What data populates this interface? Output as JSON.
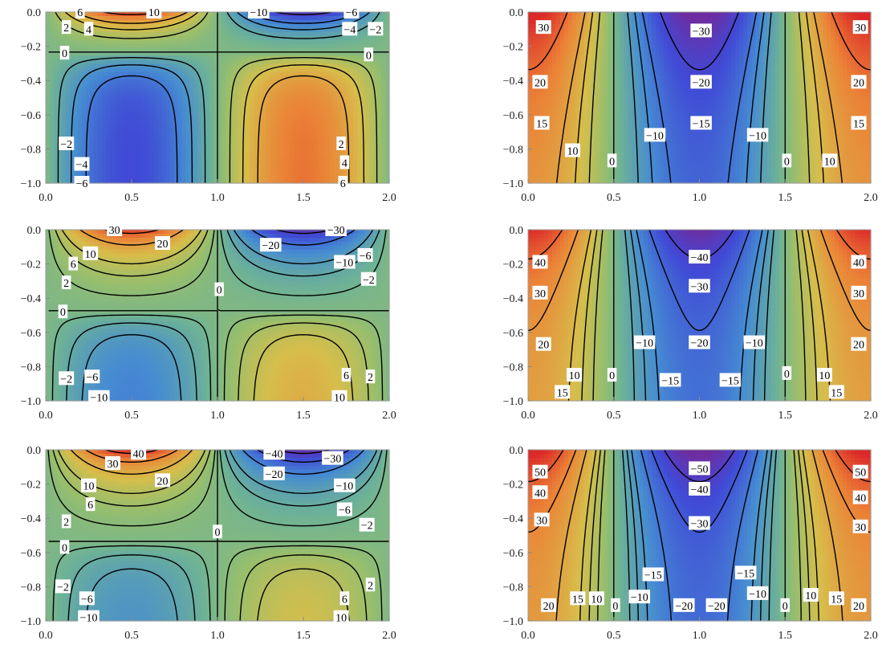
{
  "chart_data": [
    {
      "type": "heatmap",
      "panel": "row1-left",
      "x_range": [
        0,
        2
      ],
      "y_range": [
        -1,
        0
      ],
      "x_ticks": [
        "0.0",
        "0.5",
        "1.0",
        "1.5",
        "2.0"
      ],
      "y_ticks": [
        "0.0",
        "−0.2",
        "−0.4",
        "−0.6",
        "−0.8",
        "−1.0"
      ],
      "field": {
        "kind": "A",
        "s1": 11.5,
        "s2": -7.5,
        "y0": 0.235,
        "k1": 4.0,
        "k2": 3.6
      },
      "color_range": [
        -12,
        12
      ],
      "levels": [
        -10,
        -6,
        -4,
        -2,
        0,
        2,
        4,
        6,
        10
      ],
      "contour_labels": [
        {
          "x": 0.2,
          "y": 0.0,
          "text": "6"
        },
        {
          "x": 0.12,
          "y": -0.09,
          "text": "2"
        },
        {
          "x": 0.25,
          "y": -0.1,
          "text": "4"
        },
        {
          "x": 0.63,
          "y": 0.0,
          "text": "10"
        },
        {
          "x": 1.24,
          "y": 0.0,
          "text": "−10"
        },
        {
          "x": 1.78,
          "y": 0.0,
          "text": "−6"
        },
        {
          "x": 1.77,
          "y": -0.1,
          "text": "−4"
        },
        {
          "x": 1.92,
          "y": -0.1,
          "text": "−2"
        },
        {
          "x": 0.11,
          "y": -0.24,
          "text": "0"
        },
        {
          "x": 1.88,
          "y": -0.25,
          "text": "0"
        },
        {
          "x": 0.12,
          "y": -0.77,
          "text": "−2"
        },
        {
          "x": 0.21,
          "y": -0.89,
          "text": "−4"
        },
        {
          "x": 0.21,
          "y": -1.0,
          "text": "−6"
        },
        {
          "x": 1.72,
          "y": -0.77,
          "text": "2"
        },
        {
          "x": 1.74,
          "y": -0.88,
          "text": "4"
        },
        {
          "x": 1.73,
          "y": -1.0,
          "text": "6"
        }
      ]
    },
    {
      "type": "heatmap",
      "panel": "row1-right",
      "x_range": [
        0,
        2
      ],
      "y_range": [
        -1,
        0
      ],
      "x_ticks": [
        "0.0",
        "0.5",
        "1.0",
        "1.5",
        "2.0"
      ],
      "y_ticks": [
        "0.0",
        "−0.2",
        "−0.4",
        "−0.6",
        "−0.8",
        "−1.0"
      ],
      "field": {
        "kind": "B",
        "A": 21,
        "C": 13,
        "k": 2.2
      },
      "color_range": [
        -38,
        38
      ],
      "levels": [
        -30,
        -20,
        -15,
        -10,
        0,
        10,
        15,
        20,
        30
      ],
      "contour_labels": [
        {
          "x": 0.09,
          "y": -0.09,
          "text": "30"
        },
        {
          "x": 0.07,
          "y": -0.41,
          "text": "20"
        },
        {
          "x": 0.08,
          "y": -0.65,
          "text": "15"
        },
        {
          "x": 0.26,
          "y": -0.81,
          "text": "10"
        },
        {
          "x": 0.49,
          "y": -0.87,
          "text": "0"
        },
        {
          "x": 1.01,
          "y": -0.11,
          "text": "−30"
        },
        {
          "x": 1.01,
          "y": -0.41,
          "text": "−20"
        },
        {
          "x": 1.01,
          "y": -0.65,
          "text": "−15"
        },
        {
          "x": 0.74,
          "y": -0.72,
          "text": "−10"
        },
        {
          "x": 1.34,
          "y": -0.72,
          "text": "−10"
        },
        {
          "x": 1.51,
          "y": -0.87,
          "text": "0"
        },
        {
          "x": 1.76,
          "y": -0.87,
          "text": "10"
        },
        {
          "x": 1.93,
          "y": -0.65,
          "text": "15"
        },
        {
          "x": 1.93,
          "y": -0.41,
          "text": "20"
        },
        {
          "x": 1.94,
          "y": -0.09,
          "text": "30"
        }
      ]
    },
    {
      "type": "heatmap",
      "panel": "row2-left",
      "x_range": [
        0,
        2
      ],
      "y_range": [
        -1,
        0
      ],
      "x_ticks": [
        "0.0",
        "0.5",
        "1.0",
        "1.5",
        "2.0"
      ],
      "y_ticks": [
        "0.0",
        "−0.2",
        "−0.4",
        "−0.6",
        "−0.8",
        "−1.0"
      ],
      "field": {
        "kind": "A",
        "s1": 34,
        "s2": -14.5,
        "y0": 0.48,
        "k1": 2.6,
        "k2": 3.2
      },
      "color_range": [
        -36,
        36
      ],
      "levels": [
        -30,
        -20,
        -10,
        -6,
        -2,
        0,
        2,
        6,
        10,
        20,
        30
      ],
      "contour_labels": [
        {
          "x": 0.4,
          "y": 0.0,
          "text": "30"
        },
        {
          "x": 0.68,
          "y": -0.08,
          "text": "20"
        },
        {
          "x": 0.26,
          "y": -0.14,
          "text": "10"
        },
        {
          "x": 0.16,
          "y": -0.2,
          "text": "6"
        },
        {
          "x": 0.12,
          "y": -0.31,
          "text": "2"
        },
        {
          "x": 1.01,
          "y": -0.35,
          "text": "0"
        },
        {
          "x": 0.1,
          "y": -0.48,
          "text": "0"
        },
        {
          "x": 1.69,
          "y": 0.0,
          "text": "−30"
        },
        {
          "x": 1.31,
          "y": -0.09,
          "text": "−20"
        },
        {
          "x": 1.74,
          "y": -0.19,
          "text": "−10"
        },
        {
          "x": 1.86,
          "y": -0.15,
          "text": "−6"
        },
        {
          "x": 1.88,
          "y": -0.29,
          "text": "−2"
        },
        {
          "x": 0.12,
          "y": -0.87,
          "text": "−2"
        },
        {
          "x": 0.27,
          "y": -0.86,
          "text": "−6"
        },
        {
          "x": 0.31,
          "y": -0.98,
          "text": "−10"
        },
        {
          "x": 1.75,
          "y": -0.85,
          "text": "6"
        },
        {
          "x": 1.89,
          "y": -0.86,
          "text": "2"
        },
        {
          "x": 1.71,
          "y": -0.98,
          "text": "10"
        }
      ]
    },
    {
      "type": "heatmap",
      "panel": "row2-right",
      "x_range": [
        0,
        2
      ],
      "y_range": [
        -1,
        0
      ],
      "x_ticks": [
        "0.0",
        "0.5",
        "1.0",
        "1.5",
        "2.0"
      ],
      "y_ticks": [
        "0.0",
        "−0.2",
        "−0.4",
        "−0.6",
        "−0.8",
        "−1.0"
      ],
      "field": {
        "kind": "B",
        "A": 26,
        "C": 15,
        "k": 3.0
      },
      "color_range": [
        -50,
        50
      ],
      "levels": [
        -40,
        -30,
        -20,
        -15,
        -10,
        0,
        10,
        15,
        20,
        30,
        40
      ],
      "contour_labels": [
        {
          "x": 0.07,
          "y": -0.19,
          "text": "40"
        },
        {
          "x": 0.07,
          "y": -0.37,
          "text": "30"
        },
        {
          "x": 0.09,
          "y": -0.67,
          "text": "20"
        },
        {
          "x": 0.27,
          "y": -0.85,
          "text": "10"
        },
        {
          "x": 0.2,
          "y": -0.95,
          "text": "15"
        },
        {
          "x": 0.49,
          "y": -0.85,
          "text": "0"
        },
        {
          "x": 1.0,
          "y": -0.16,
          "text": "−40"
        },
        {
          "x": 1.0,
          "y": -0.33,
          "text": "−30"
        },
        {
          "x": 1.0,
          "y": -0.66,
          "text": "−20"
        },
        {
          "x": 0.68,
          "y": -0.66,
          "text": "−10"
        },
        {
          "x": 1.32,
          "y": -0.66,
          "text": "−10"
        },
        {
          "x": 0.83,
          "y": -0.88,
          "text": "−15"
        },
        {
          "x": 1.18,
          "y": -0.88,
          "text": "−15"
        },
        {
          "x": 1.51,
          "y": -0.84,
          "text": "0"
        },
        {
          "x": 1.73,
          "y": -0.85,
          "text": "10"
        },
        {
          "x": 1.8,
          "y": -0.95,
          "text": "15"
        },
        {
          "x": 1.93,
          "y": -0.67,
          "text": "20"
        },
        {
          "x": 1.93,
          "y": -0.37,
          "text": "30"
        },
        {
          "x": 1.93,
          "y": -0.19,
          "text": "40"
        }
      ]
    },
    {
      "type": "heatmap",
      "panel": "row3-left",
      "x_range": [
        0,
        2
      ],
      "y_range": [
        -1,
        0
      ],
      "x_ticks": [
        "0.0",
        "0.5",
        "1.0",
        "1.5",
        "2.0"
      ],
      "y_ticks": [
        "0.0",
        "−0.2",
        "−0.4",
        "−0.6",
        "−0.8",
        "−1.0"
      ],
      "field": {
        "kind": "A",
        "s1": 45,
        "s2": -13.5,
        "y0": 0.54,
        "k1": 2.5,
        "k2": 3.0
      },
      "color_range": [
        -45,
        45
      ],
      "levels": [
        -40,
        -30,
        -20,
        -10,
        -6,
        -2,
        0,
        2,
        6,
        10,
        20,
        30,
        40
      ],
      "contour_labels": [
        {
          "x": 0.54,
          "y": -0.02,
          "text": "40"
        },
        {
          "x": 0.39,
          "y": -0.08,
          "text": "30"
        },
        {
          "x": 0.68,
          "y": -0.18,
          "text": "20"
        },
        {
          "x": 0.25,
          "y": -0.21,
          "text": "10"
        },
        {
          "x": 0.26,
          "y": -0.32,
          "text": "6"
        },
        {
          "x": 0.12,
          "y": -0.42,
          "text": "2"
        },
        {
          "x": 1.0,
          "y": -0.48,
          "text": "0"
        },
        {
          "x": 0.11,
          "y": -0.57,
          "text": "0"
        },
        {
          "x": 1.33,
          "y": -0.02,
          "text": "−40"
        },
        {
          "x": 1.67,
          "y": -0.05,
          "text": "−30"
        },
        {
          "x": 1.33,
          "y": -0.14,
          "text": "−20"
        },
        {
          "x": 1.74,
          "y": -0.21,
          "text": "−10"
        },
        {
          "x": 1.74,
          "y": -0.35,
          "text": "−6"
        },
        {
          "x": 1.87,
          "y": -0.44,
          "text": "−2"
        },
        {
          "x": 0.1,
          "y": -0.8,
          "text": "−2"
        },
        {
          "x": 0.24,
          "y": -0.87,
          "text": "−6"
        },
        {
          "x": 0.25,
          "y": -0.98,
          "text": "−10"
        },
        {
          "x": 1.74,
          "y": -0.87,
          "text": "6"
        },
        {
          "x": 1.89,
          "y": -0.79,
          "text": "2"
        },
        {
          "x": 1.72,
          "y": -0.98,
          "text": "10"
        }
      ]
    },
    {
      "type": "heatmap",
      "panel": "row3-right",
      "x_range": [
        0,
        2
      ],
      "y_range": [
        -1,
        0
      ],
      "x_ticks": [
        "0.0",
        "0.5",
        "1.0",
        "1.5",
        "2.0"
      ],
      "y_ticks": [
        "0.0",
        "−0.2",
        "−0.4",
        "−0.6",
        "−0.8",
        "−1.0"
      ],
      "field": {
        "kind": "B",
        "A": 33,
        "C": 17,
        "k": 3.0
      },
      "color_range": [
        -60,
        60
      ],
      "levels": [
        -50,
        -40,
        -30,
        -20,
        -15,
        -10,
        0,
        10,
        15,
        20,
        30,
        40,
        50
      ],
      "contour_labels": [
        {
          "x": 0.07,
          "y": -0.13,
          "text": "50"
        },
        {
          "x": 0.07,
          "y": -0.25,
          "text": "40"
        },
        {
          "x": 0.08,
          "y": -0.41,
          "text": "30"
        },
        {
          "x": 0.12,
          "y": -0.91,
          "text": "20"
        },
        {
          "x": 0.29,
          "y": -0.87,
          "text": "15"
        },
        {
          "x": 0.4,
          "y": -0.87,
          "text": "10"
        },
        {
          "x": 0.51,
          "y": -0.91,
          "text": "0"
        },
        {
          "x": 1.0,
          "y": -0.11,
          "text": "−50"
        },
        {
          "x": 1.0,
          "y": -0.23,
          "text": "−40"
        },
        {
          "x": 1.0,
          "y": -0.43,
          "text": "−30"
        },
        {
          "x": 0.73,
          "y": -0.73,
          "text": "−15"
        },
        {
          "x": 1.27,
          "y": -0.72,
          "text": "−15"
        },
        {
          "x": 0.65,
          "y": -0.86,
          "text": "−10"
        },
        {
          "x": 1.34,
          "y": -0.84,
          "text": "−10"
        },
        {
          "x": 0.91,
          "y": -0.91,
          "text": "−20"
        },
        {
          "x": 1.1,
          "y": -0.91,
          "text": "−20"
        },
        {
          "x": 1.5,
          "y": -0.91,
          "text": "0"
        },
        {
          "x": 1.65,
          "y": -0.85,
          "text": "10"
        },
        {
          "x": 1.8,
          "y": -0.87,
          "text": "15"
        },
        {
          "x": 1.93,
          "y": -0.91,
          "text": "20"
        },
        {
          "x": 1.94,
          "y": -0.45,
          "text": "30"
        },
        {
          "x": 1.94,
          "y": -0.28,
          "text": "40"
        },
        {
          "x": 1.94,
          "y": -0.13,
          "text": "50"
        }
      ]
    }
  ]
}
